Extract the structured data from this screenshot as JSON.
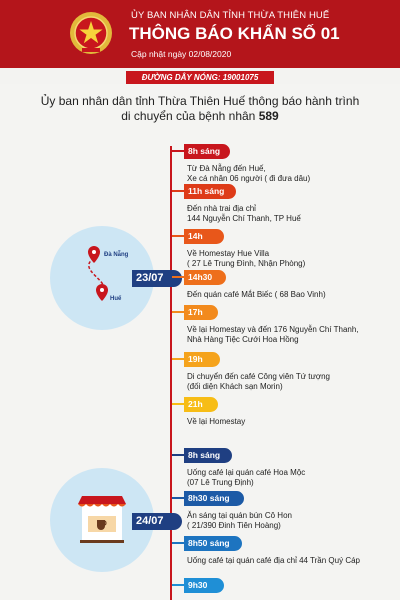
{
  "header": {
    "org": "ỦY BAN NHÂN DÂN TỈNH THỪA THIÊN HUẾ",
    "title": "THÔNG BÁO KHẨN SỐ 01",
    "updated": "Cập nhật ngày 02/08/2020"
  },
  "hotline": "ĐƯỜNG DÂY NÓNG: 19001075",
  "intro": {
    "line1": "Ủy ban nhân dân tỉnh Thừa Thiên Huế thông báo hành trình",
    "line2_prefix": "di chuyển của bệnh nhân ",
    "patient": "589"
  },
  "map_labels": {
    "from": "Đà Nẵng",
    "to": "Huế"
  },
  "days": [
    {
      "date": "23/07",
      "events": [
        {
          "time": "8h sáng",
          "color": "#c8161d",
          "lines": [
            "Từ Đà Nẵng đến Huế,",
            "Xe cá nhân 06 người ( đi đưa dâu)"
          ]
        },
        {
          "time": "11h sáng",
          "color": "#de3b18",
          "lines": [
            "Đến nhà trai địa chỉ",
            "144 Nguyễn Chí Thanh, TP Huế"
          ]
        },
        {
          "time": "14h",
          "color": "#e8571a",
          "lines": [
            "Về Homestay Hue Villa",
            "( 27 Lê Trung Đình, Nhận Phòng)"
          ]
        },
        {
          "time": "14h30",
          "color": "#ee6f1b",
          "lines": [
            "Đến quán café Mắt Biếc ( 68 Bao Vinh)"
          ]
        },
        {
          "time": "17h",
          "color": "#f28a1d",
          "lines": [
            "Về lại Homestay và đến 176 Nguyễn Chí Thanh,",
            "Nhà Hàng Tiệc Cưới Hoa Hồng"
          ]
        },
        {
          "time": "19h",
          "color": "#f5a31c",
          "lines": [
            "Di chuyển đến café Công viên Tứ tượng",
            "(đối diện Khách sạn Morin)"
          ]
        },
        {
          "time": "21h",
          "color": "#f7bd16",
          "lines": [
            "Về lại Homestay"
          ]
        }
      ]
    },
    {
      "date": "24/07",
      "events": [
        {
          "time": "8h sáng",
          "color": "#1f3f82",
          "lines": [
            "Uống café lại quán café Hoa Mộc",
            "(07 Lê Trung Định)"
          ]
        },
        {
          "time": "8h30 sáng",
          "color": "#1c5aa6",
          "lines": [
            "Ăn sáng tại quán bún Cô Hon",
            "( 21/390 Đinh Tiên Hoàng)"
          ]
        },
        {
          "time": "8h50 sáng",
          "color": "#1d74c0",
          "lines": [
            "Uống café tại quán café địa chỉ 44 Trần Quý Cáp"
          ]
        },
        {
          "time": "9h30",
          "color": "#1f8fd6",
          "lines": []
        }
      ]
    }
  ]
}
